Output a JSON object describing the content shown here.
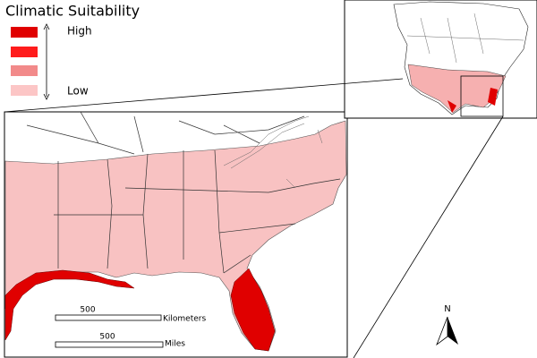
{
  "title": "Climatic Suitability",
  "legend": {
    "high": "High",
    "low": "Low"
  },
  "scale_bars": [
    {
      "distance": "500",
      "unit": "Kilometers"
    },
    {
      "distance": "500",
      "unit": "Miles"
    }
  ],
  "north_arrow": "N"
}
